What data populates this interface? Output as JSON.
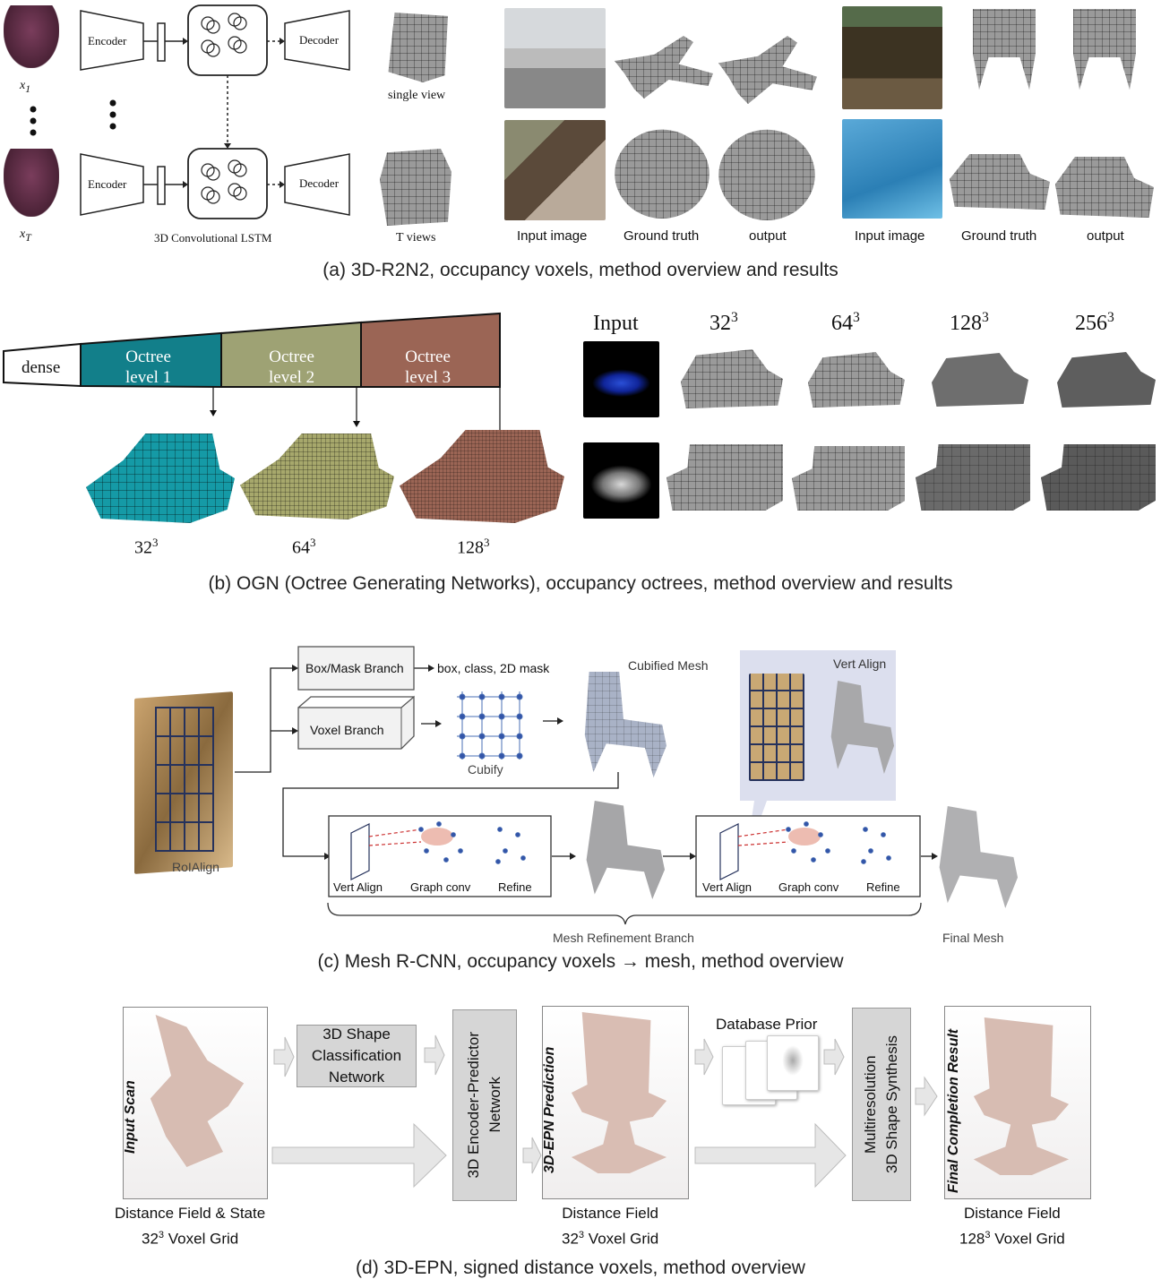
{
  "panel_a": {
    "encoder": "Encoder",
    "decoder": "Decoder",
    "x1": "x",
    "x1_sub": "1",
    "xT": "x",
    "xT_sub": "T",
    "lstm_label": "3D Convolutional LSTM",
    "single_view": "single view",
    "t_views": "T views",
    "col_input": "Input image",
    "col_gt": "Ground truth",
    "col_output": "output",
    "caption": "(a) 3D-R2N2, occupancy voxels, method overview and results"
  },
  "panel_b": {
    "dense": "dense",
    "octree1": [
      "Octree",
      "level 1"
    ],
    "octree2": [
      "Octree",
      "level 2"
    ],
    "octree3": [
      "Octree",
      "level 3"
    ],
    "res_base": [
      "32",
      "64",
      "128"
    ],
    "res_exp": "3",
    "input_label": "Input",
    "header_res": [
      "32",
      "64",
      "128",
      "256"
    ],
    "caption": "(b) OGN (Octree Generating Networks), occupancy octrees, method overview and results",
    "colors": {
      "level1": "#127f8a",
      "level2": "#9ea274",
      "level3": "#9b6555"
    }
  },
  "panel_c": {
    "box_mask_branch": "Box/Mask Branch",
    "box_mask_output": "box, class, 2D mask",
    "voxel_branch": "Voxel Branch",
    "cubify": "Cubify",
    "cubified_mesh": "Cubified Mesh",
    "vert_align_inset": "Vert Align",
    "roialign": "RoIAlign",
    "stage_labels": [
      "Vert Align",
      "Graph conv",
      "Refine"
    ],
    "mesh_refinement_branch": "Mesh Refinement Branch",
    "final_mesh": "Final Mesh",
    "caption": "(c) Mesh R-CNN, occupancy voxels → mesh, method overview"
  },
  "panel_d": {
    "input_scan": "Input Scan",
    "classification": [
      "3D Shape",
      "Classification",
      "Network"
    ],
    "encoder_predictor": [
      "3D Encoder-Predictor",
      "Network"
    ],
    "epn_prediction": "3D-EPN Prediction",
    "database_prior": "Database Prior",
    "synthesis": [
      "Multiresolution",
      "3D Shape Synthesis"
    ],
    "final_result": "Final Completion Result",
    "grid1": [
      "Distance Field & State",
      "32",
      "3",
      " Voxel Grid"
    ],
    "grid2": [
      "Distance Field",
      "32",
      "3",
      " Voxel Grid"
    ],
    "grid3": [
      "Distance Field",
      "128",
      "3",
      " Voxel Grid"
    ],
    "caption": "(d) 3D-EPN, signed distance voxels, method overview"
  }
}
